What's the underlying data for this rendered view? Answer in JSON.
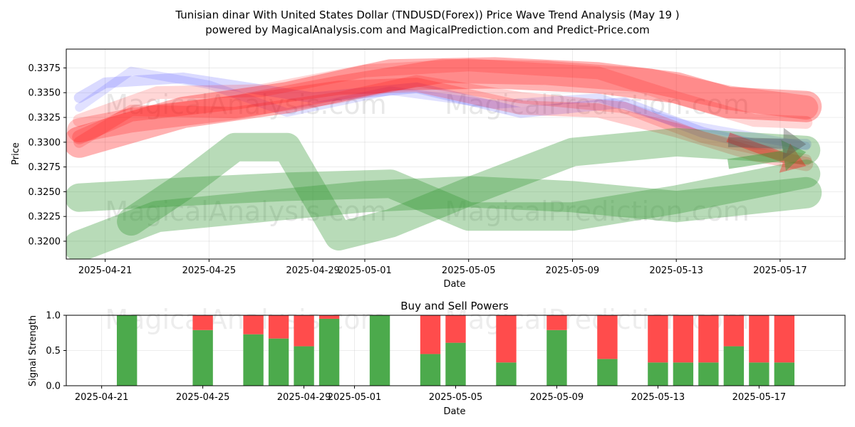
{
  "title_line1": "Tunisian dinar With United States Dollar (TNDUSD(Forex)) Price Wave Trend Analysis (May 19 )",
  "title_line2": "powered by MagicalAnalysis.com and MagicalPrediction.com and Predict-Price.com",
  "watermarks": [
    "MagicalAnalysis.com",
    "MagicalPrediction.com"
  ],
  "colors": {
    "red": "#ff0000",
    "blue": "#3333ff",
    "green": "#339933",
    "bar_green": "#4caa4c",
    "bar_red": "#ff4c4c",
    "grey": "#555555"
  },
  "chart_data": [
    {
      "type": "line",
      "xlabel": "Date",
      "ylabel": "Price",
      "xlim": [
        "2025-04-19.5",
        "2025-05-19.5"
      ],
      "ylim": [
        0.3182,
        0.3394
      ],
      "grid": true,
      "x_ticks": [
        "2025-04-21",
        "2025-04-25",
        "2025-04-29",
        "2025-05-01",
        "2025-05-05",
        "2025-05-09",
        "2025-05-13",
        "2025-05-17"
      ],
      "y_ticks": [
        "0.3375",
        "0.3350",
        "0.3325",
        "0.3300",
        "0.3275",
        "0.3250",
        "0.3225",
        "0.3200"
      ],
      "y_tick_values": [
        0.3375,
        0.335,
        0.3325,
        0.33,
        0.3275,
        0.325,
        0.3225,
        0.32
      ],
      "series": [
        {
          "name": "blue wave 1",
          "color": "blue",
          "opacity": 0.18,
          "width": 15,
          "points": [
            [
              "2025-04-20",
              0.3345
            ],
            [
              "2025-04-21",
              0.336
            ],
            [
              "2025-04-24",
              0.3365
            ],
            [
              "2025-04-29",
              0.3345
            ],
            [
              "2025-05-03",
              0.3355
            ],
            [
              "2025-05-07",
              0.333
            ],
            [
              "2025-05-11",
              0.334
            ],
            [
              "2025-05-14",
              0.331
            ],
            [
              "2025-05-16",
              0.3298
            ],
            [
              "2025-05-18",
              0.3298
            ]
          ]
        },
        {
          "name": "blue wave 2",
          "color": "blue",
          "opacity": 0.15,
          "width": 12,
          "points": [
            [
              "2025-04-20",
              0.3335
            ],
            [
              "2025-04-22",
              0.3372
            ],
            [
              "2025-04-25",
              0.3358
            ],
            [
              "2025-04-28",
              0.333
            ],
            [
              "2025-05-02",
              0.3352
            ],
            [
              "2025-05-06",
              0.3338
            ],
            [
              "2025-05-10",
              0.3345
            ],
            [
              "2025-05-13",
              0.332
            ],
            [
              "2025-05-18",
              0.3296
            ]
          ]
        },
        {
          "name": "red wave 1",
          "color": "red",
          "opacity": 0.16,
          "width": 18,
          "points": [
            [
              "2025-04-20",
              0.3322
            ],
            [
              "2025-04-23",
              0.335
            ],
            [
              "2025-04-27",
              0.3352
            ],
            [
              "2025-05-01",
              0.3372
            ],
            [
              "2025-05-05",
              0.3378
            ],
            [
              "2025-05-10",
              0.337
            ],
            [
              "2025-05-13",
              0.3345
            ],
            [
              "2025-05-16",
              0.3322
            ],
            [
              "2025-05-18",
              0.332
            ]
          ]
        },
        {
          "name": "red wave 2",
          "color": "red",
          "opacity": 0.18,
          "width": 16,
          "points": [
            [
              "2025-04-20",
              0.33
            ],
            [
              "2025-04-22",
              0.3332
            ],
            [
              "2025-04-26",
              0.333
            ],
            [
              "2025-04-30",
              0.3345
            ],
            [
              "2025-05-03",
              0.3362
            ],
            [
              "2025-05-07",
              0.3345
            ],
            [
              "2025-05-11",
              0.3335
            ],
            [
              "2025-05-14",
              0.3305
            ],
            [
              "2025-05-18",
              0.3282
            ]
          ]
        },
        {
          "name": "red wave 3",
          "color": "red",
          "opacity": 0.2,
          "width": 20,
          "points": [
            [
              "2025-04-20",
              0.3305
            ],
            [
              "2025-04-22",
              0.3328
            ],
            [
              "2025-04-26",
              0.334
            ],
            [
              "2025-04-30",
              0.3355
            ],
            [
              "2025-05-03",
              0.3358
            ],
            [
              "2025-05-07",
              0.3335
            ],
            [
              "2025-05-10",
              0.3332
            ],
            [
              "2025-05-13",
              0.3312
            ],
            [
              "2025-05-16",
              0.3288
            ],
            [
              "2025-05-18",
              0.3278
            ]
          ]
        },
        {
          "name": "red band upper",
          "color": "red",
          "opacity": 0.3,
          "width": 44,
          "points": [
            [
              "2025-04-20",
              0.33
            ],
            [
              "2025-04-24",
              0.333
            ],
            [
              "2025-04-28",
              0.3345
            ],
            [
              "2025-05-02",
              0.3368
            ],
            [
              "2025-05-06",
              0.337
            ],
            [
              "2025-05-10",
              0.3365
            ],
            [
              "2025-05-13",
              0.3355
            ],
            [
              "2025-05-15",
              0.334
            ],
            [
              "2025-05-18",
              0.3336
            ]
          ]
        },
        {
          "name": "red band lower",
          "color": "red",
          "opacity": 0.22,
          "width": 34,
          "points": [
            [
              "2025-04-20",
              0.3312
            ],
            [
              "2025-04-22",
              0.3322
            ],
            [
              "2025-04-26",
              0.3335
            ],
            [
              "2025-04-30",
              0.3355
            ],
            [
              "2025-05-04",
              0.3372
            ],
            [
              "2025-05-08",
              0.337
            ],
            [
              "2025-05-12",
              0.3362
            ],
            [
              "2025-05-15",
              0.3345
            ],
            [
              "2025-05-18",
              0.3335
            ]
          ]
        },
        {
          "name": "green band upper",
          "color": "green",
          "opacity": 0.35,
          "width": 40,
          "points": [
            [
              "2025-04-22",
              0.322
            ],
            [
              "2025-04-24",
              0.3255
            ],
            [
              "2025-04-26",
              0.3295
            ],
            [
              "2025-04-28",
              0.3295
            ],
            [
              "2025-04-30",
              0.3205
            ],
            [
              "2025-05-02",
              0.3218
            ],
            [
              "2025-05-05",
              0.325
            ],
            [
              "2025-05-09",
              0.329
            ],
            [
              "2025-05-13",
              0.33
            ],
            [
              "2025-05-18",
              0.3292
            ]
          ]
        },
        {
          "name": "green band middle",
          "color": "green",
          "opacity": 0.35,
          "width": 40,
          "points": [
            [
              "2025-04-20",
              0.3244
            ],
            [
              "2025-04-24",
              0.325
            ],
            [
              "2025-04-28",
              0.3255
            ],
            [
              "2025-05-02",
              0.3258
            ],
            [
              "2025-05-05",
              0.3225
            ],
            [
              "2025-05-09",
              0.3225
            ],
            [
              "2025-05-13",
              0.3242
            ],
            [
              "2025-05-18",
              0.3268
            ]
          ]
        },
        {
          "name": "green band lower",
          "color": "green",
          "opacity": 0.35,
          "width": 44,
          "points": [
            [
              "2025-04-20",
              0.3195
            ],
            [
              "2025-04-23",
              0.3225
            ],
            [
              "2025-04-27",
              0.3235
            ],
            [
              "2025-05-01",
              0.3245
            ],
            [
              "2025-05-05",
              0.325
            ],
            [
              "2025-05-09",
              0.3245
            ],
            [
              "2025-05-13",
              0.3235
            ],
            [
              "2025-05-18",
              0.3249
            ]
          ]
        }
      ],
      "arrows": [
        {
          "color": "red",
          "opacity": 0.35,
          "from": [
            "2025-05-15",
            0.3305
          ],
          "to": [
            "2025-05-18",
            0.3276
          ]
        },
        {
          "color": "green",
          "opacity": 0.45,
          "from": [
            "2025-05-15",
            0.3278
          ],
          "to": [
            "2025-05-18",
            0.329
          ]
        },
        {
          "color": "grey",
          "opacity": 0.4,
          "from": [
            "2025-05-15",
            0.33
          ],
          "to": [
            "2025-05-18",
            0.3298
          ]
        }
      ]
    },
    {
      "type": "bar",
      "title": "Buy and Sell Powers",
      "xlabel": "Date",
      "ylabel": "Signal Strength",
      "ylim": [
        0,
        1
      ],
      "y_ticks": [
        "0.0",
        "0.5",
        "1.0"
      ],
      "y_tick_values": [
        0,
        0.5,
        1
      ],
      "x_ticks": [
        "2025-04-21",
        "2025-04-25",
        "2025-04-29",
        "2025-05-01",
        "2025-05-05",
        "2025-05-09",
        "2025-05-13",
        "2025-05-17"
      ],
      "series_names": [
        "Buy",
        "Sell"
      ],
      "dates": [
        "2025-04-22",
        "2025-04-25",
        "2025-04-27",
        "2025-04-28",
        "2025-04-29",
        "2025-04-30",
        "2025-05-02",
        "2025-05-04",
        "2025-05-05",
        "2025-05-07",
        "2025-05-09",
        "2025-05-11",
        "2025-05-13",
        "2025-05-14",
        "2025-05-15",
        "2025-05-16",
        "2025-05-17",
        "2025-05-18"
      ],
      "buy": [
        1.0,
        0.79,
        0.73,
        0.67,
        0.56,
        0.95,
        1.0,
        0.45,
        0.61,
        0.33,
        0.79,
        0.38,
        0.33,
        0.33,
        0.33,
        0.56,
        0.33,
        0.33
      ],
      "sell": [
        0.0,
        0.21,
        0.27,
        0.33,
        0.44,
        0.05,
        0.0,
        0.55,
        0.39,
        0.67,
        0.21,
        0.62,
        0.67,
        0.67,
        0.67,
        0.44,
        0.67,
        0.67
      ]
    }
  ]
}
